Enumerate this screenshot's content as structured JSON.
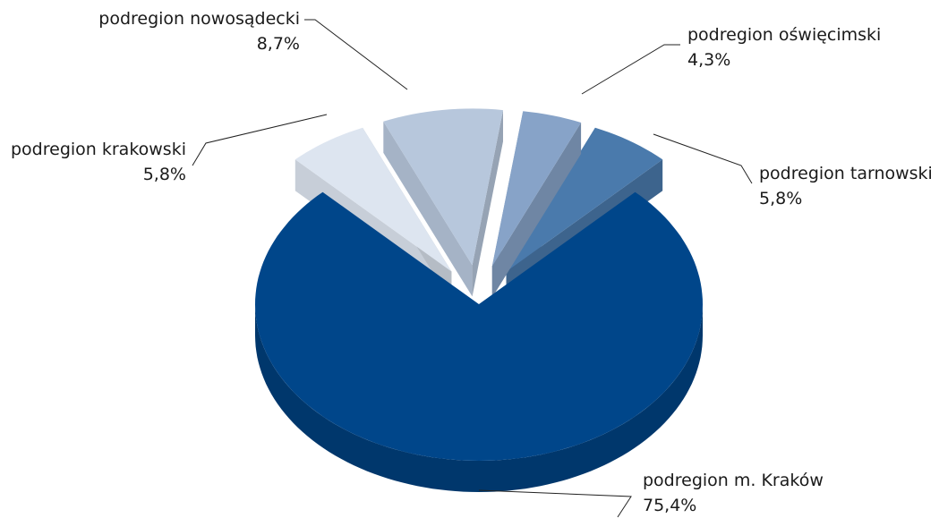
{
  "chart_data": {
    "type": "pie",
    "categories": [
      "podregion m. Kraków",
      "podregion krakowski",
      "podregion nowosądecki",
      "podregion oświęcimski",
      "podregion tarnowski"
    ],
    "values": [
      75.4,
      5.8,
      8.7,
      4.3,
      5.8
    ],
    "value_labels": [
      "75,4%",
      "5,8%",
      "8,7%",
      "4,3%",
      "5,8%"
    ],
    "colors": [
      "#00468a",
      "#dde5f0",
      "#b7c7dc",
      "#87a3c8",
      "#4a7aac"
    ]
  }
}
